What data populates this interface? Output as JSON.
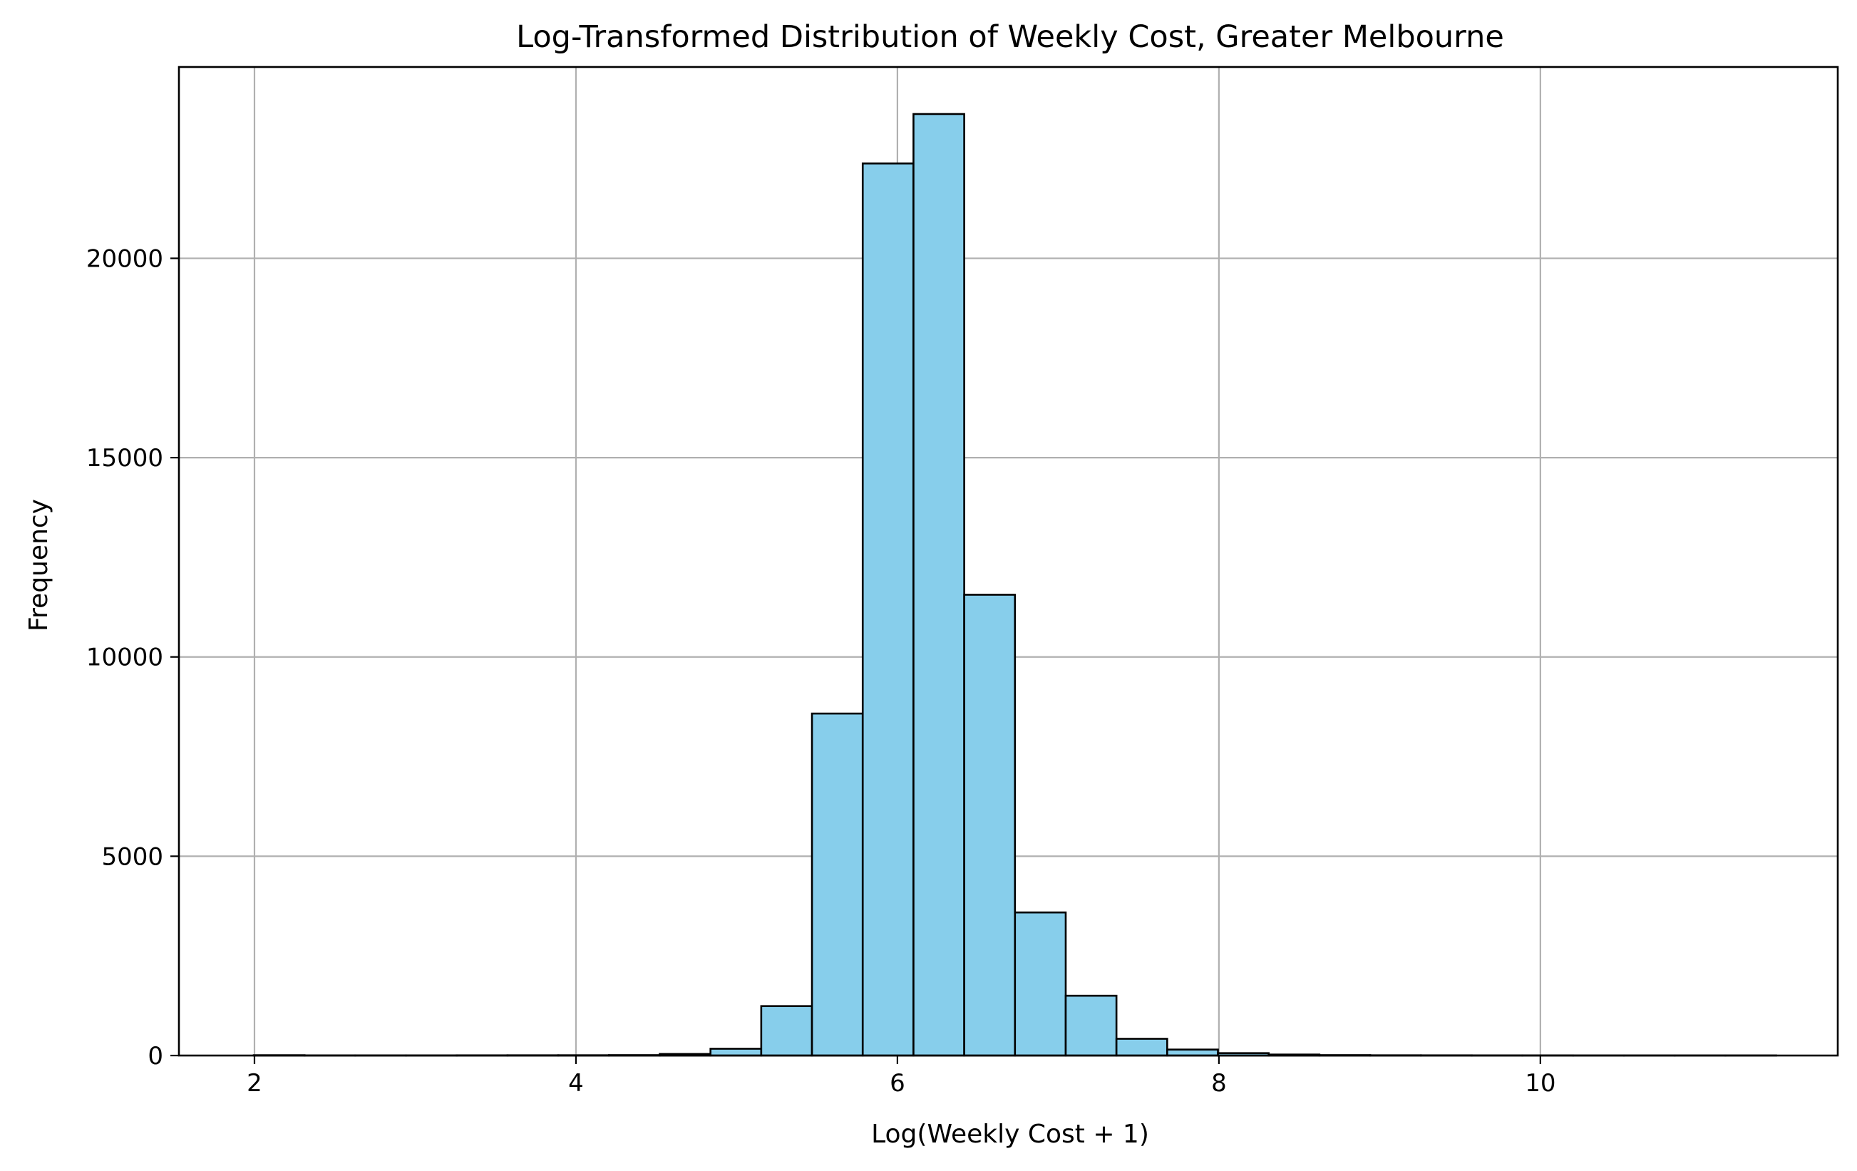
{
  "chart_data": {
    "type": "bar",
    "subtype": "histogram",
    "title": "Log-Transformed Distribution of Weekly Cost, Greater Melbourne",
    "xlabel": "Log(Weekly Cost + 1)",
    "ylabel": "Frequency",
    "xlim": [
      1.53,
      11.85
    ],
    "ylim": [
      0,
      24800
    ],
    "xticks": [
      2,
      4,
      6,
      8,
      10
    ],
    "xtick_labels": [
      "2",
      "4",
      "6",
      "8",
      "10"
    ],
    "yticks": [
      0,
      5000,
      10000,
      15000,
      20000
    ],
    "ytick_labels": [
      "0",
      "5000",
      "10000",
      "15000",
      "20000"
    ],
    "grid": true,
    "legend": "none",
    "bin_width": 0.3157,
    "bins": [
      {
        "x0": 1.9957,
        "x1": 2.3114,
        "count": 8
      },
      {
        "x0": 2.3114,
        "x1": 2.6271,
        "count": 4
      },
      {
        "x0": 2.6271,
        "x1": 2.9428,
        "count": 4
      },
      {
        "x0": 2.9428,
        "x1": 3.2585,
        "count": 4
      },
      {
        "x0": 3.2585,
        "x1": 3.5742,
        "count": 5
      },
      {
        "x0": 3.5742,
        "x1": 3.8899,
        "count": 6
      },
      {
        "x0": 3.8899,
        "x1": 4.2056,
        "count": 7
      },
      {
        "x0": 4.2056,
        "x1": 4.5213,
        "count": 10
      },
      {
        "x0": 4.5213,
        "x1": 4.837,
        "count": 40
      },
      {
        "x0": 4.837,
        "x1": 5.1527,
        "count": 170
      },
      {
        "x0": 5.1527,
        "x1": 5.4684,
        "count": 1240
      },
      {
        "x0": 5.4684,
        "x1": 5.7841,
        "count": 8580
      },
      {
        "x0": 5.7841,
        "x1": 6.0998,
        "count": 22380
      },
      {
        "x0": 6.0998,
        "x1": 6.4155,
        "count": 23620
      },
      {
        "x0": 6.4155,
        "x1": 6.7312,
        "count": 11560
      },
      {
        "x0": 6.7312,
        "x1": 7.0469,
        "count": 3590
      },
      {
        "x0": 7.0469,
        "x1": 7.3626,
        "count": 1500
      },
      {
        "x0": 7.3626,
        "x1": 7.6783,
        "count": 420
      },
      {
        "x0": 7.6783,
        "x1": 7.994,
        "count": 150
      },
      {
        "x0": 7.994,
        "x1": 8.3097,
        "count": 60
      },
      {
        "x0": 8.3097,
        "x1": 8.6254,
        "count": 25
      },
      {
        "x0": 8.6254,
        "x1": 8.9411,
        "count": 10
      },
      {
        "x0": 8.9411,
        "x1": 9.2568,
        "count": 6
      },
      {
        "x0": 9.2568,
        "x1": 9.5725,
        "count": 5
      },
      {
        "x0": 9.5725,
        "x1": 9.8882,
        "count": 4
      },
      {
        "x0": 9.8882,
        "x1": 10.2039,
        "count": 4
      },
      {
        "x0": 10.2039,
        "x1": 10.5196,
        "count": 3
      },
      {
        "x0": 10.5196,
        "x1": 10.8353,
        "count": 3
      },
      {
        "x0": 10.8353,
        "x1": 11.151,
        "count": 3
      },
      {
        "x0": 11.151,
        "x1": 11.4667,
        "count": 3
      }
    ],
    "colors": {
      "bar_fill": "#87ceeb",
      "bar_edge": "#000000",
      "grid": "#b0b0b0",
      "axes": "#000000"
    }
  }
}
